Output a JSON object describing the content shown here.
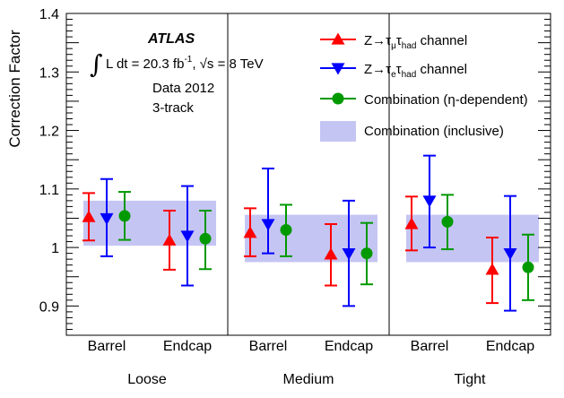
{
  "chart_data": {
    "type": "scatter",
    "ylabel": "Correction Factor",
    "ylim": [
      0.85,
      1.4
    ],
    "yticks": [
      "0.9",
      "1",
      "1.1",
      "1.2",
      "1.3",
      "1.4"
    ],
    "categories": [
      "Barrel",
      "Endcap",
      "Barrel",
      "Endcap",
      "Barrel",
      "Endcap"
    ],
    "groups": [
      "Loose",
      "Medium",
      "Tight"
    ],
    "annotations": {
      "experiment": "ATLAS",
      "lumi_prefix": "L dt = 20.3 fb",
      "lumi_sup": "-1",
      "energy_text": ",  √s = 8 TeV",
      "dataset": "Data 2012",
      "selection": "3-track"
    },
    "legend_position": "top-right",
    "series": [
      {
        "name": "Z→τμτhad channel",
        "legend_parts": [
          "Z→τ",
          "μ",
          "τ",
          "had",
          " channel"
        ],
        "marker": "triangle-up",
        "color": "#ff0000",
        "values": [
          1.052,
          1.012,
          1.025,
          0.988,
          1.04,
          0.962
        ],
        "err_low": [
          1.012,
          0.962,
          0.985,
          0.935,
          0.995,
          0.905
        ],
        "err_high": [
          1.093,
          1.063,
          1.067,
          1.04,
          1.087,
          1.017
        ]
      },
      {
        "name": "Z→τeτhad channel",
        "legend_parts": [
          "Z→τ",
          "e",
          "τ",
          "had",
          " channel"
        ],
        "marker": "triangle-down",
        "color": "#0000ff",
        "values": [
          1.05,
          1.02,
          1.04,
          0.99,
          1.08,
          0.99
        ],
        "err_low": [
          0.985,
          0.935,
          0.99,
          0.9,
          1.0,
          0.892
        ],
        "err_high": [
          1.117,
          1.105,
          1.135,
          1.08,
          1.157,
          1.088
        ]
      },
      {
        "name": "Combination (η-dependent)",
        "marker": "circle",
        "color": "#009900",
        "values": [
          1.054,
          1.015,
          1.03,
          0.99,
          1.044,
          0.966
        ],
        "err_low": [
          1.013,
          0.963,
          0.985,
          0.937,
          0.997,
          0.91
        ],
        "err_high": [
          1.095,
          1.063,
          1.073,
          1.042,
          1.09,
          1.022
        ]
      }
    ],
    "bands": {
      "name": "Combination (inclusive)",
      "color": "#c5c5f4",
      "ranges": [
        [
          1.003,
          1.08
        ],
        [
          0.975,
          1.056
        ],
        [
          0.975,
          1.056
        ]
      ]
    }
  }
}
